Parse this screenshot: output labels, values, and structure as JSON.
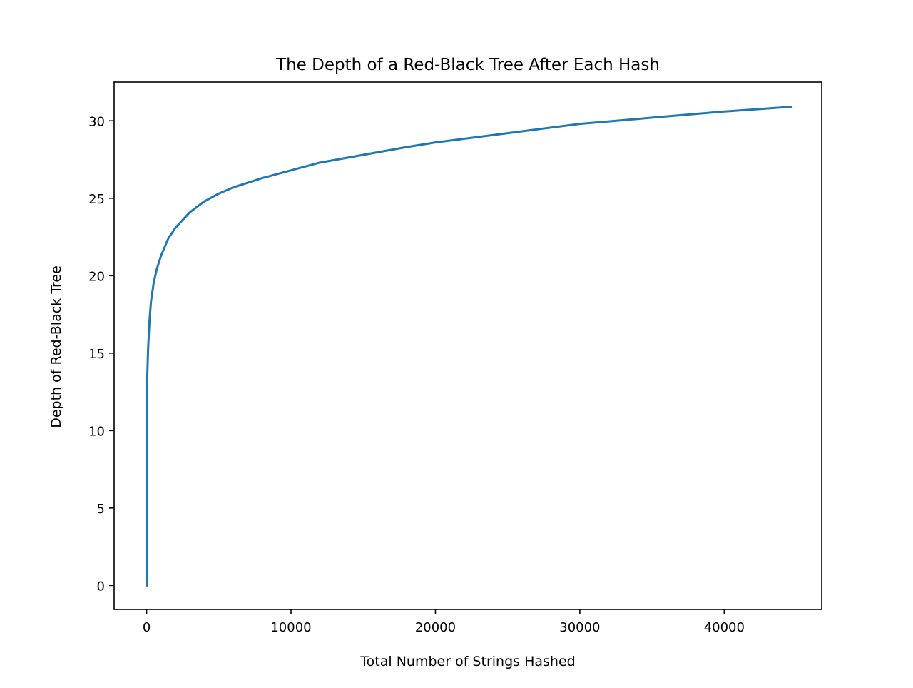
{
  "chart_data": {
    "type": "line",
    "title": "The Depth of a Red-Black Tree After Each Hash",
    "xlabel": "Total Number of Strings Hashed",
    "ylabel": "Depth of Red-Black Tree",
    "xlim": [
      -2250,
      46750
    ],
    "ylim": [
      -1.55,
      32.5
    ],
    "xticks": [
      0,
      10000,
      20000,
      30000,
      40000
    ],
    "xtick_labels": [
      "0",
      "10000",
      "20000",
      "30000",
      "40000"
    ],
    "yticks": [
      0,
      5,
      10,
      15,
      20,
      25,
      30
    ],
    "ytick_labels": [
      "0",
      "5",
      "10",
      "15",
      "20",
      "25",
      "30"
    ],
    "grid": false,
    "line_color": "#1f77b4",
    "series": [
      {
        "x": [
          0,
          10,
          25,
          50,
          100,
          200,
          300,
          500,
          700,
          1000,
          1500,
          2000,
          2500,
          3000,
          4000,
          5000,
          6000,
          7000,
          8000,
          10000,
          12000,
          15000,
          18000,
          20000,
          25000,
          30000,
          35000,
          40000,
          44600
        ],
        "values": [
          0,
          9.5,
          12,
          13.6,
          15.2,
          17.1,
          18.3,
          19.6,
          20.4,
          21.3,
          22.4,
          23.1,
          23.6,
          24.1,
          24.8,
          25.3,
          25.7,
          26.0,
          26.3,
          26.8,
          27.3,
          27.8,
          28.3,
          28.6,
          29.2,
          29.8,
          30.2,
          30.6,
          30.9
        ]
      }
    ]
  }
}
